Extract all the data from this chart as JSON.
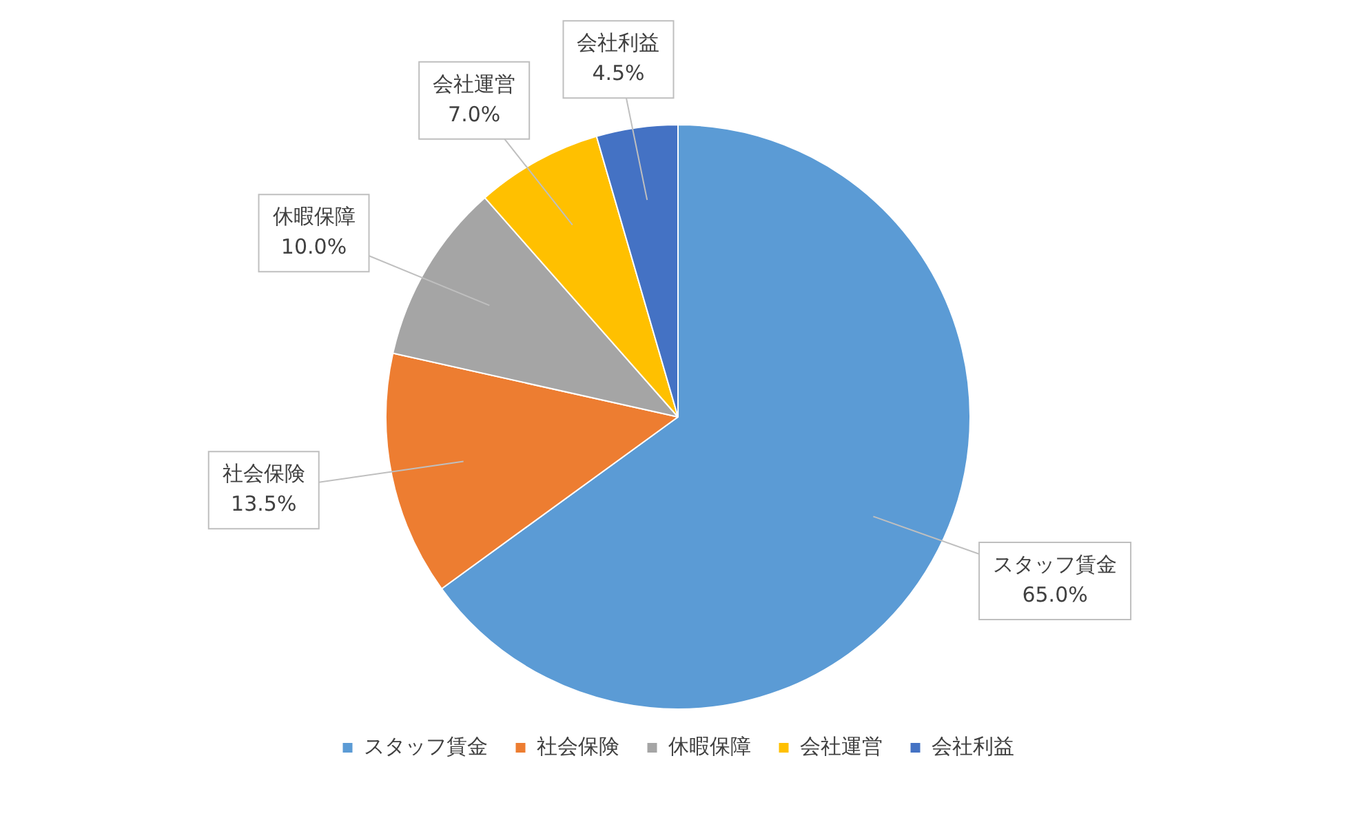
{
  "chart_data": {
    "type": "pie",
    "categories": [
      "スタッフ賃金",
      "社会保険",
      "休暇保障",
      "会社運営",
      "会社利益"
    ],
    "values": [
      65.0,
      13.5,
      10.0,
      7.0,
      4.5
    ],
    "value_labels": [
      "65.0%",
      "13.5%",
      "10.0%",
      "7.0%",
      "4.5%"
    ],
    "colors": [
      "#5b9bd5",
      "#ed7d31",
      "#a5a5a5",
      "#ffc000",
      "#4472c4"
    ],
    "legend": "bottom"
  }
}
